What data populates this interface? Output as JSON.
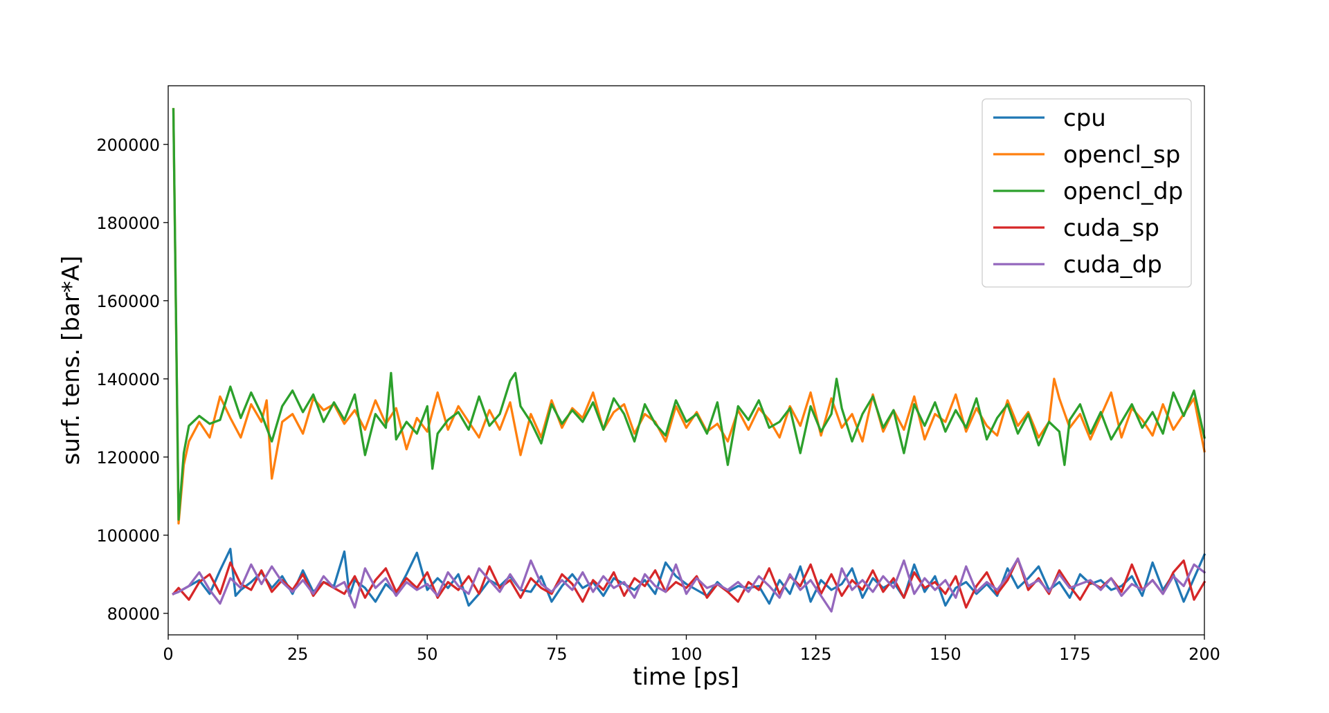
{
  "chart_data": {
    "type": "line",
    "title": "",
    "xlabel": "time [ps]",
    "ylabel": "surf. tens. [bar*A]",
    "xlim": [
      0,
      200
    ],
    "ylim": [
      74500,
      215000
    ],
    "xticks": [
      0,
      25,
      50,
      75,
      100,
      125,
      150,
      175,
      200
    ],
    "yticks": [
      80000,
      100000,
      120000,
      140000,
      160000,
      180000,
      200000
    ],
    "grid": false,
    "legend_position": "top-right",
    "series": [
      {
        "name": "cpu",
        "color": "#1f77b4",
        "x": [
          1,
          2,
          4,
          6,
          8,
          10,
          12,
          13,
          14,
          16,
          18,
          20,
          22,
          24,
          26,
          28,
          30,
          32,
          34,
          35,
          36,
          38,
          40,
          42,
          44,
          46,
          48,
          50,
          52,
          54,
          56,
          58,
          60,
          62,
          64,
          66,
          68,
          70,
          72,
          74,
          76,
          78,
          80,
          82,
          84,
          86,
          88,
          90,
          92,
          94,
          96,
          98,
          100,
          102,
          104,
          106,
          108,
          110,
          112,
          114,
          116,
          118,
          120,
          122,
          124,
          126,
          128,
          130,
          132,
          134,
          136,
          138,
          140,
          142,
          144,
          146,
          148,
          150,
          152,
          154,
          156,
          158,
          160,
          162,
          164,
          166,
          168,
          170,
          172,
          174,
          176,
          178,
          180,
          182,
          184,
          186,
          188,
          190,
          192,
          194,
          196,
          198,
          200
        ],
        "values": [
          85000,
          85500,
          87000,
          88500,
          85000,
          91000,
          96500,
          84500,
          86000,
          88000,
          90500,
          86500,
          89500,
          85000,
          91000,
          85500,
          88000,
          87000,
          95800,
          84500,
          88500,
          86500,
          83000,
          87500,
          85000,
          90000,
          95500,
          86000,
          89000,
          86500,
          90000,
          82000,
          85000,
          88500,
          87000,
          89500,
          86000,
          85500,
          89500,
          83000,
          87000,
          90000,
          86500,
          88000,
          84500,
          89000,
          87500,
          86000,
          88500,
          85000,
          93000,
          89500,
          87500,
          86000,
          84500,
          88000,
          85500,
          87000,
          86500,
          87000,
          82500,
          88500,
          85000,
          92000,
          83000,
          88500,
          86000,
          87500,
          91500,
          84000,
          89000,
          86500,
          88000,
          84000,
          92500,
          85500,
          89500,
          82000,
          86500,
          88000,
          85000,
          87500,
          84500,
          91500,
          86500,
          89000,
          92000,
          86000,
          88000,
          84000,
          90000,
          87500,
          88500,
          86000,
          87000,
          89500,
          84500,
          93000,
          86000,
          90000,
          83000,
          89000,
          95000
        ]
      },
      {
        "name": "opencl_sp",
        "color": "#ff7f0e",
        "x": [
          1,
          2,
          3,
          4,
          6,
          8,
          10,
          12,
          14,
          16,
          18,
          19,
          20,
          22,
          24,
          26,
          28,
          30,
          32,
          34,
          36,
          38,
          40,
          42,
          44,
          46,
          48,
          50,
          52,
          54,
          56,
          58,
          60,
          62,
          64,
          66,
          68,
          70,
          72,
          74,
          76,
          78,
          80,
          82,
          84,
          86,
          88,
          90,
          92,
          94,
          96,
          98,
          100,
          102,
          104,
          106,
          108,
          110,
          112,
          114,
          116,
          118,
          120,
          122,
          124,
          126,
          128,
          130,
          132,
          134,
          136,
          138,
          140,
          142,
          144,
          146,
          148,
          150,
          152,
          154,
          156,
          158,
          160,
          162,
          164,
          166,
          168,
          170,
          171,
          172,
          174,
          176,
          178,
          180,
          182,
          184,
          186,
          188,
          190,
          192,
          194,
          196,
          198,
          200
        ],
        "values": [
          209000,
          103000,
          118000,
          124000,
          129000,
          125000,
          135500,
          130000,
          125000,
          133500,
          129000,
          134500,
          114500,
          129000,
          131000,
          126000,
          135000,
          132000,
          133500,
          128500,
          132000,
          127000,
          134500,
          128500,
          132500,
          122000,
          130000,
          126500,
          136500,
          127000,
          133000,
          129000,
          125000,
          132000,
          127000,
          134000,
          120500,
          131000,
          125000,
          134500,
          127500,
          132500,
          130000,
          136500,
          127000,
          131500,
          133500,
          126000,
          131000,
          129000,
          124000,
          133000,
          127500,
          131500,
          126500,
          128500,
          124000,
          132000,
          127000,
          132500,
          129500,
          125000,
          133000,
          128000,
          136500,
          125500,
          135000,
          127500,
          131000,
          124000,
          136000,
          126500,
          132000,
          127000,
          135500,
          124500,
          131000,
          129000,
          136000,
          126500,
          132500,
          128000,
          125500,
          134500,
          128000,
          131500,
          125000,
          129000,
          140000,
          135000,
          127500,
          131000,
          124500,
          130500,
          136500,
          125000,
          132500,
          129500,
          125500,
          133500,
          127000,
          131000,
          135000,
          121500
        ]
      },
      {
        "name": "opencl_dp",
        "color": "#2ca02c",
        "x": [
          1,
          2,
          3,
          4,
          6,
          8,
          10,
          12,
          14,
          16,
          18,
          20,
          22,
          24,
          26,
          28,
          30,
          32,
          34,
          36,
          38,
          40,
          42,
          43,
          44,
          46,
          48,
          50,
          51,
          52,
          54,
          56,
          58,
          60,
          62,
          64,
          66,
          67,
          68,
          70,
          72,
          74,
          76,
          78,
          80,
          82,
          84,
          86,
          88,
          90,
          92,
          94,
          96,
          98,
          100,
          102,
          104,
          106,
          108,
          110,
          112,
          114,
          116,
          118,
          120,
          122,
          124,
          126,
          128,
          129,
          130,
          132,
          134,
          136,
          138,
          140,
          142,
          144,
          146,
          148,
          150,
          152,
          154,
          156,
          158,
          160,
          162,
          164,
          166,
          168,
          170,
          172,
          173,
          174,
          176,
          178,
          180,
          182,
          184,
          186,
          188,
          190,
          192,
          194,
          196,
          198,
          200
        ],
        "values": [
          209000,
          104000,
          121000,
          128000,
          130500,
          128500,
          129500,
          138000,
          130000,
          136500,
          131000,
          124000,
          133000,
          137000,
          131500,
          136000,
          129000,
          134000,
          129500,
          136000,
          120500,
          131000,
          127500,
          141500,
          124500,
          129000,
          126000,
          133000,
          117000,
          126000,
          129500,
          131500,
          127000,
          135500,
          128000,
          131000,
          139500,
          141500,
          133000,
          129000,
          123500,
          133500,
          128500,
          132000,
          129000,
          134000,
          127000,
          135000,
          131000,
          124000,
          133500,
          128500,
          125500,
          134500,
          129000,
          131000,
          126000,
          134000,
          118000,
          133000,
          129500,
          134500,
          127500,
          129000,
          132500,
          121000,
          133000,
          126500,
          131000,
          140000,
          132500,
          124000,
          131000,
          135500,
          127500,
          132000,
          121000,
          133500,
          128000,
          134000,
          126500,
          132000,
          127500,
          135000,
          124500,
          130000,
          133500,
          126000,
          131000,
          123000,
          129000,
          126500,
          118000,
          129500,
          133500,
          126000,
          131500,
          124500,
          129000,
          133500,
          127500,
          131500,
          126000,
          136500,
          130500,
          137000,
          125000
        ]
      },
      {
        "name": "cuda_sp",
        "color": "#d62728",
        "x": [
          1,
          2,
          4,
          6,
          8,
          10,
          12,
          14,
          16,
          18,
          20,
          22,
          24,
          26,
          28,
          30,
          32,
          34,
          36,
          38,
          40,
          42,
          44,
          46,
          48,
          50,
          52,
          54,
          56,
          58,
          60,
          62,
          64,
          66,
          68,
          70,
          72,
          74,
          76,
          78,
          80,
          82,
          84,
          86,
          88,
          90,
          92,
          94,
          96,
          98,
          100,
          102,
          104,
          106,
          108,
          110,
          112,
          114,
          116,
          118,
          120,
          122,
          124,
          126,
          128,
          130,
          132,
          134,
          136,
          138,
          140,
          142,
          144,
          146,
          148,
          150,
          152,
          154,
          156,
          158,
          160,
          162,
          164,
          166,
          168,
          170,
          172,
          174,
          176,
          178,
          180,
          182,
          184,
          186,
          188,
          190,
          192,
          194,
          196,
          198,
          200
        ],
        "values": [
          85000,
          86500,
          83500,
          88000,
          90000,
          85000,
          93000,
          87500,
          86000,
          91000,
          85500,
          88500,
          86000,
          90000,
          84500,
          88000,
          86500,
          85000,
          89500,
          84000,
          88500,
          91500,
          85500,
          89000,
          86500,
          90500,
          84000,
          88000,
          86000,
          89500,
          85000,
          92000,
          86500,
          88500,
          84000,
          89000,
          86500,
          85000,
          90000,
          87500,
          83000,
          88500,
          86000,
          90500,
          84500,
          89000,
          87000,
          91000,
          85500,
          88000,
          86500,
          89500,
          84000,
          87500,
          85500,
          83000,
          88000,
          86000,
          91500,
          85000,
          89500,
          87000,
          92500,
          85000,
          90000,
          84500,
          88500,
          86000,
          91000,
          85500,
          89000,
          84000,
          90500,
          86500,
          88000,
          85000,
          89500,
          81500,
          87000,
          90500,
          85000,
          88500,
          94000,
          86000,
          89000,
          85000,
          91000,
          87000,
          83500,
          88000,
          86500,
          89000,
          85500,
          92500,
          86000,
          88500,
          85000,
          90500,
          93500,
          83500,
          88000
        ]
      },
      {
        "name": "cuda_dp",
        "color": "#9467bd",
        "x": [
          1,
          2,
          4,
          6,
          8,
          10,
          12,
          14,
          16,
          18,
          20,
          22,
          24,
          26,
          28,
          30,
          32,
          34,
          36,
          38,
          40,
          42,
          44,
          46,
          48,
          50,
          52,
          54,
          56,
          58,
          60,
          62,
          64,
          66,
          68,
          70,
          72,
          74,
          76,
          78,
          80,
          82,
          84,
          86,
          88,
          90,
          92,
          94,
          96,
          98,
          100,
          102,
          104,
          106,
          108,
          110,
          112,
          114,
          116,
          118,
          120,
          122,
          124,
          126,
          128,
          130,
          132,
          134,
          136,
          138,
          140,
          142,
          144,
          146,
          148,
          150,
          152,
          154,
          156,
          158,
          160,
          162,
          164,
          166,
          168,
          170,
          172,
          174,
          176,
          178,
          180,
          182,
          184,
          186,
          188,
          190,
          192,
          194,
          196,
          198,
          200
        ],
        "values": [
          85000,
          85500,
          87000,
          90500,
          86000,
          82500,
          89000,
          86500,
          92500,
          87500,
          92000,
          88000,
          85500,
          88500,
          85000,
          89500,
          86500,
          88000,
          81500,
          91500,
          86500,
          89000,
          84500,
          88000,
          86000,
          87500,
          84500,
          90500,
          87000,
          85000,
          91500,
          88500,
          85500,
          90000,
          86000,
          93500,
          87500,
          85500,
          88500,
          86000,
          90500,
          85500,
          89500,
          86500,
          88000,
          84000,
          90000,
          87000,
          85500,
          92500,
          85000,
          89000,
          86500,
          87500,
          86000,
          88000,
          85500,
          89500,
          87000,
          84000,
          90000,
          86000,
          88500,
          84500,
          80500,
          91500,
          86000,
          88500,
          85500,
          89500,
          86500,
          93500,
          85000,
          89000,
          86000,
          88500,
          84000,
          92000,
          85500,
          88000,
          86000,
          89500,
          94000,
          87000,
          88500,
          85500,
          90000,
          86500,
          87500,
          88500,
          86000,
          89000,
          84500,
          87500,
          86000,
          88500,
          85000,
          89500,
          87000,
          92500,
          90500
        ]
      }
    ]
  }
}
